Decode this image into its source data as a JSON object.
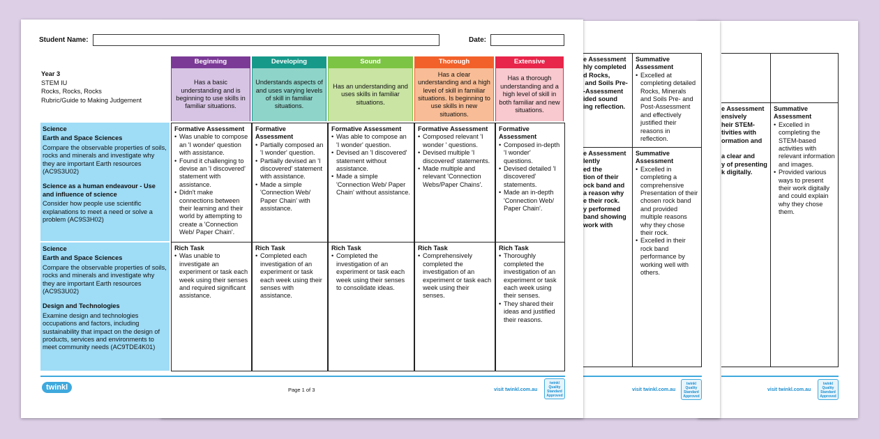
{
  "colors": {
    "background": "#dccfe6",
    "beginning": "#7b3a96",
    "developing": "#17998a",
    "sound": "#7cc443",
    "thorough": "#f2612a",
    "extensive": "#e8254a",
    "curriculum": "#9fdcf6",
    "brand": "#3fa9dd"
  },
  "header": {
    "student_name_label": "Student Name:",
    "date_label": "Date:"
  },
  "intro": [
    "Year 3",
    "STEM IU",
    "Rocks, Rocks, Rocks",
    "Rubric/Guide to Making Judgement"
  ],
  "levels": [
    {
      "name": "Beginning",
      "desc": "Has a basic understanding and is beginning to use skills in familiar situations."
    },
    {
      "name": "Developing",
      "desc": "Understands aspects of and uses varying levels of skill in familiar situations."
    },
    {
      "name": "Sound",
      "desc": "Has an understanding and uses skills in familiar situations."
    },
    {
      "name": "Thorough",
      "desc": "Has a clear understanding and a high level of skill in familiar situations. Is beginning to use skills in new situations."
    },
    {
      "name": "Extensive",
      "desc": "Has a thorough understanding and a high level of skill in both familiar and new situations."
    }
  ],
  "rows": [
    {
      "curriculum": {
        "h1": "Science",
        "h2": "Earth and Space Sciences",
        "p1": "Compare the observable properties of soils, rocks and minerals and investigate why they are important Earth resources (AC9S3U02)",
        "h3": "Science as a human endeavour  - Use and influence of science",
        "p2": "Consider how people use scientific explanations to meet a need or solve a problem (AC9S3H02)"
      },
      "cells": [
        {
          "title": "Formative Assessment",
          "items": [
            "Was unable to compose an 'I wonder' question with assistance.",
            "Found it challenging to devise an 'I discovered' statement with assistance.",
            "Didn't make connections between their learning and their world by attempting to create a 'Connection Web/ Paper Chain'."
          ]
        },
        {
          "title": "Formative Assessment",
          "items": [
            "Partially composed an 'I wonder' question.",
            "Partially devised an 'I discovered' statement with assistance.",
            "Made a simple 'Connection Web/ Paper Chain' with assistance."
          ]
        },
        {
          "title": "Formative Assessment",
          "items": [
            "Was able to compose an 'I wonder' question.",
            "Devised an 'I discovered' statement without assistance.",
            "Made a simple 'Connection Web/ Paper Chain' without assistance."
          ]
        },
        {
          "title": "Formative Assessment",
          "items": [
            "Composed relevant 'I wonder ' questions.",
            "Devised multiple 'I discovered' statements.",
            "Made multiple and relevant 'Connection Webs/Paper Chains'."
          ]
        },
        {
          "title": "Formative Assessment",
          "items": [
            "Composed in-depth 'I wonder' questions.",
            "Devised detailed 'I discovered' statements.",
            "Made an in-depth 'Connection Web/ Paper Chain'."
          ]
        }
      ]
    },
    {
      "curriculum": {
        "h1": "Science",
        "h2": "Earth and Space Sciences",
        "p1": "Compare the observable properties of soils, rocks and minerals and investigate why they are important Earth resources (AC9S3U02)",
        "h3": "Design and Technologies",
        "p2": "Examine design and technologies occupations and factors, including sustainability that impact on the design of products, services and environments to meet community needs (AC9TDE4K01)"
      },
      "cells": [
        {
          "title": "Rich Task",
          "items": [
            "Was unable to investigate an experiment or task each week using their senses and required significant assistance."
          ]
        },
        {
          "title": "Rich Task",
          "items": [
            "Completed each investigation of an experiment or task each week using their senses with assistance."
          ]
        },
        {
          "title": "Rich Task",
          "items": [
            "Completed the investigation of an experiment or task each week using their senses to consolidate ideas."
          ]
        },
        {
          "title": "Rich Task",
          "items": [
            "Comprehensively completed the investigation of an experiment or task each week using their senses."
          ]
        },
        {
          "title": "Rich Task",
          "items": [
            "Thoroughly completed the investigation of an experiment or task each week using their senses.",
            "They shared their ideas and justified their reasons."
          ]
        }
      ]
    }
  ],
  "footer": {
    "logo": "twinkl",
    "page": "Page 1 of 3",
    "visit": "visit twinkl.com.au",
    "badge": "twinkl Quality Standard Approved"
  },
  "page2": {
    "r1_left": "e Assessment\nhly completed\nd Rocks,\n and Soils Pre-\n-Assessment\nided sound\ning reflection.",
    "r1_right": {
      "title": "Summative Assessment",
      "items": [
        "Excelled at completing detailed Rocks, Minerals and Soils Pre- and Post-Assessment and effectively justified their reasons in reflection."
      ]
    },
    "r2_left": "e Assessment\nlently\ned the\ntion of their\nock band and\na reason why\ne their rock.\ny performed\nband showing\nwork with",
    "r2_right": {
      "title": "Summative Assessment",
      "items": [
        "Excelled in completing a comprehensive Presentation of their chosen rock band and provided multiple reasons why they chose their rock.",
        "Excelled in their rock band performance by working well with others."
      ]
    }
  },
  "page3": {
    "r2_left": "e Assessment\nensively\nheir STEM-\ntivities with\normation and\n\na clear and\ny of presenting\nk digitally.",
    "r2_right": {
      "title": "Summative Assessment",
      "items": [
        "Excelled in completing the STEM-based activities with relevant information and images.",
        "Provided various ways to present their work digitally and could explain why they chose them."
      ]
    }
  }
}
